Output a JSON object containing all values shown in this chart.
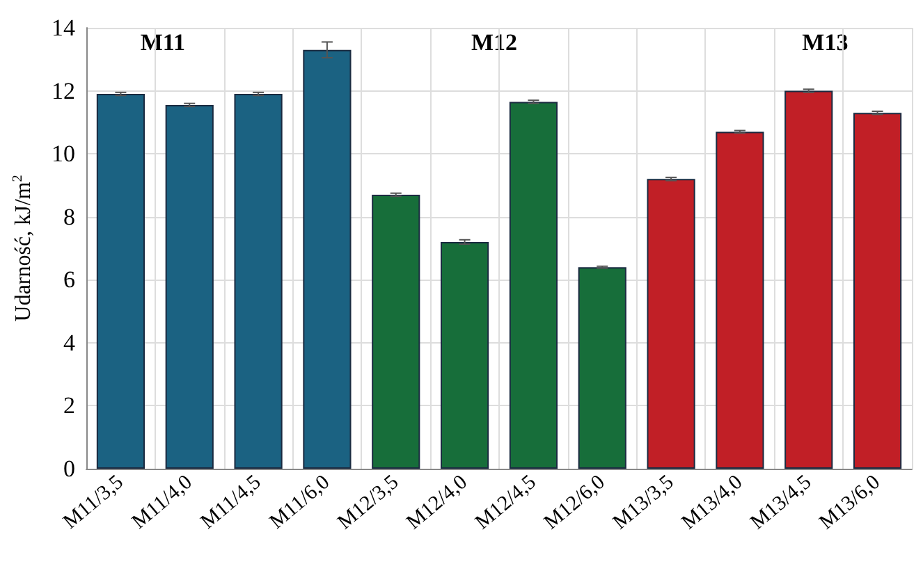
{
  "chart_data": {
    "type": "bar",
    "ylabel": "Udarność, kJ/m$^{2}$",
    "categories": [
      "M11/3,5",
      "M11/4,0",
      "M11/4,5",
      "M11/6,0",
      "M12/3,5",
      "M12/4,0",
      "M12/4,5",
      "M12/6,0",
      "M13/3,5",
      "M13/4,0",
      "M13/4,5",
      "M13/6,0"
    ],
    "values": [
      11.9,
      11.55,
      11.9,
      13.3,
      8.7,
      7.2,
      11.65,
      6.4,
      9.2,
      10.7,
      12.0,
      11.3
    ],
    "errors": [
      0.05,
      0.05,
      0.05,
      0.25,
      0.05,
      0.07,
      0.05,
      0.03,
      0.05,
      0.04,
      0.05,
      0.05
    ],
    "colors": [
      "#1b6282",
      "#1b6282",
      "#1b6282",
      "#1b6282",
      "#176e3a",
      "#176e3a",
      "#176e3a",
      "#176e3a",
      "#c11f26",
      "#c11f26",
      "#c11f26",
      "#c11f26"
    ],
    "annotations": [
      "M11",
      "M12",
      "M13"
    ],
    "ylim": [
      0,
      14
    ],
    "yticks": [
      0,
      2,
      4,
      6,
      8,
      10,
      12,
      14
    ],
    "grid": true
  }
}
